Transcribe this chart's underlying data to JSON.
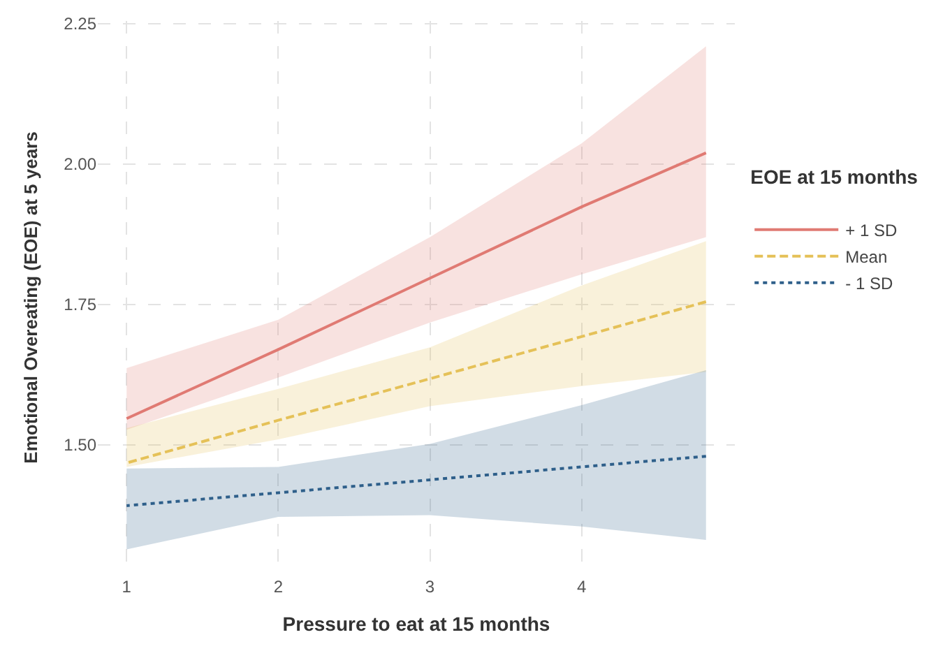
{
  "chart_data": {
    "type": "line",
    "xlabel": "Pressure to eat at 15 months",
    "ylabel": "Emotional Overeating (EOE) at 5 years",
    "legend_title": "EOE at 15 months",
    "legend": "right",
    "grid": true,
    "x": [
      1,
      2,
      3,
      4,
      4.82
    ],
    "xlim": [
      0.81,
      5.01
    ],
    "xticks": [
      1,
      2,
      3,
      4
    ],
    "ylim": [
      1.27,
      2.255
    ],
    "yticks": [
      {
        "value": 1.5,
        "label": "1.50"
      },
      {
        "value": 1.75,
        "label": "1.75"
      },
      {
        "value": 2.0,
        "label": "2.00"
      },
      {
        "value": 2.25,
        "label": "2.25"
      }
    ],
    "series": [
      {
        "name": "+ 1 SD",
        "color": "#e07a73",
        "line_style": "solid",
        "values": [
          1.547,
          1.67,
          1.797,
          1.924,
          2.02
        ],
        "lower": [
          1.527,
          1.62,
          1.718,
          1.804,
          1.87
        ],
        "upper": [
          1.637,
          1.723,
          1.87,
          2.037,
          2.21
        ]
      },
      {
        "name": "Mean",
        "color": "#e5c158",
        "line_style": "dashed",
        "values": [
          1.468,
          1.544,
          1.618,
          1.693,
          1.755
        ],
        "lower": [
          1.461,
          1.51,
          1.569,
          1.605,
          1.63
        ],
        "upper": [
          1.53,
          1.6,
          1.674,
          1.784,
          1.863
        ]
      },
      {
        "name": "- 1 SD",
        "color": "#2e5f8a",
        "line_style": "dotted",
        "values": [
          1.392,
          1.415,
          1.438,
          1.461,
          1.48
        ],
        "lower": [
          1.314,
          1.372,
          1.375,
          1.355,
          1.331
        ],
        "upper": [
          1.458,
          1.461,
          1.502,
          1.571,
          1.633
        ]
      }
    ]
  }
}
